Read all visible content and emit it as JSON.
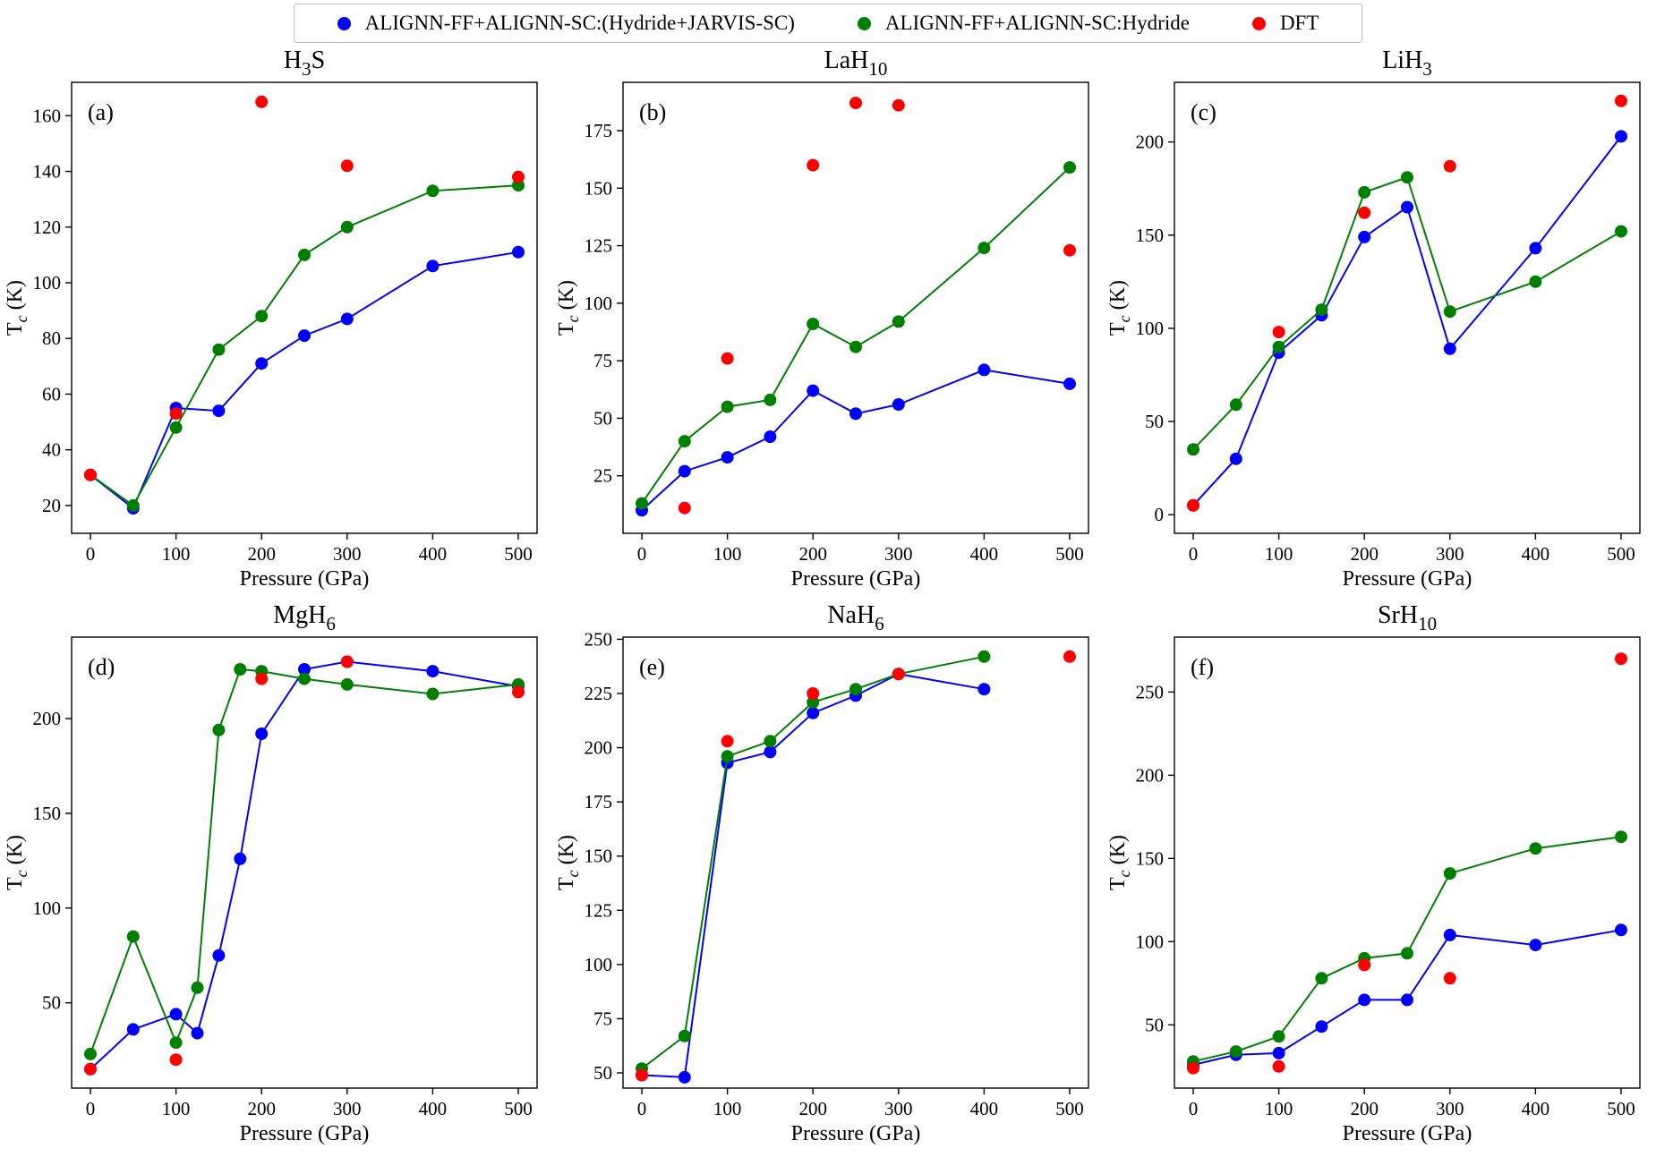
{
  "legend": {
    "items": [
      {
        "label": "ALIGNN-FF+ALIGNN-SC:(Hydride+JARVIS-SC)",
        "color": "#0000ff"
      },
      {
        "label": "ALIGNN-FF+ALIGNN-SC:Hydride",
        "color": "#008000"
      },
      {
        "label": "DFT",
        "color": "#ff0000"
      }
    ]
  },
  "chart_data": [
    {
      "type": "line",
      "panel": "(a)",
      "title": {
        "pre": "H",
        "sub": "3",
        "post": "S"
      },
      "xlabel": "Pressure (GPa)",
      "ylabel": {
        "pre": "T",
        "sub": "c",
        "post": " (K)"
      },
      "xlim": [
        -22,
        522
      ],
      "ylim": [
        10,
        172
      ],
      "xticks": [
        0,
        100,
        200,
        300,
        400,
        500
      ],
      "yticks": [
        20,
        40,
        60,
        80,
        100,
        120,
        140,
        160
      ],
      "series": [
        {
          "name": "ALIGNN-FF+ALIGNN-SC:(Hydride+JARVIS-SC)",
          "color": "#0000ff",
          "line": true,
          "points": [
            [
              0,
              31
            ],
            [
              50,
              19
            ],
            [
              100,
              55
            ],
            [
              150,
              54
            ],
            [
              200,
              71
            ],
            [
              250,
              81
            ],
            [
              300,
              87
            ],
            [
              400,
              106
            ],
            [
              500,
              111
            ]
          ]
        },
        {
          "name": "ALIGNN-FF+ALIGNN-SC:Hydride",
          "color": "#008000",
          "line": true,
          "points": [
            [
              0,
              31
            ],
            [
              50,
              20
            ],
            [
              100,
              48
            ],
            [
              150,
              76
            ],
            [
              200,
              88
            ],
            [
              250,
              110
            ],
            [
              300,
              120
            ],
            [
              400,
              133
            ],
            [
              500,
              135
            ]
          ]
        },
        {
          "name": "DFT",
          "color": "#ff0000",
          "line": false,
          "points": [
            [
              0,
              31
            ],
            [
              100,
              53
            ],
            [
              200,
              165
            ],
            [
              300,
              142
            ],
            [
              500,
              138
            ]
          ]
        }
      ]
    },
    {
      "type": "line",
      "panel": "(b)",
      "title": {
        "pre": "LaH",
        "sub": "10",
        "post": ""
      },
      "xlabel": "Pressure (GPa)",
      "ylabel": {
        "pre": "T",
        "sub": "c",
        "post": " (K)"
      },
      "xlim": [
        -22,
        522
      ],
      "ylim": [
        0,
        196
      ],
      "xticks": [
        0,
        100,
        200,
        300,
        400,
        500
      ],
      "yticks": [
        25,
        50,
        75,
        100,
        125,
        150,
        175
      ],
      "series": [
        {
          "name": "ALIGNN-FF+ALIGNN-SC:(Hydride+JARVIS-SC)",
          "color": "#0000ff",
          "line": true,
          "points": [
            [
              0,
              10
            ],
            [
              50,
              27
            ],
            [
              100,
              33
            ],
            [
              150,
              42
            ],
            [
              200,
              62
            ],
            [
              250,
              52
            ],
            [
              300,
              56
            ],
            [
              400,
              71
            ],
            [
              500,
              65
            ]
          ]
        },
        {
          "name": "ALIGNN-FF+ALIGNN-SC:Hydride",
          "color": "#008000",
          "line": true,
          "points": [
            [
              0,
              13
            ],
            [
              50,
              40
            ],
            [
              100,
              55
            ],
            [
              150,
              58
            ],
            [
              200,
              91
            ],
            [
              250,
              81
            ],
            [
              300,
              92
            ],
            [
              400,
              124
            ],
            [
              500,
              159
            ]
          ]
        },
        {
          "name": "DFT",
          "color": "#ff0000",
          "line": false,
          "points": [
            [
              50,
              11
            ],
            [
              100,
              76
            ],
            [
              200,
              160
            ],
            [
              250,
              187
            ],
            [
              300,
              186
            ],
            [
              500,
              123
            ]
          ]
        }
      ]
    },
    {
      "type": "line",
      "panel": "(c)",
      "title": {
        "pre": "LiH",
        "sub": "3",
        "post": ""
      },
      "xlabel": "Pressure (GPa)",
      "ylabel": {
        "pre": "T",
        "sub": "c",
        "post": " (K)"
      },
      "xlim": [
        -22,
        522
      ],
      "ylim": [
        -10,
        232
      ],
      "xticks": [
        0,
        100,
        200,
        300,
        400,
        500
      ],
      "yticks": [
        0,
        50,
        100,
        150,
        200
      ],
      "series": [
        {
          "name": "ALIGNN-FF+ALIGNN-SC:(Hydride+JARVIS-SC)",
          "color": "#0000ff",
          "line": true,
          "points": [
            [
              0,
              5
            ],
            [
              50,
              30
            ],
            [
              100,
              87
            ],
            [
              150,
              107
            ],
            [
              200,
              149
            ],
            [
              250,
              165
            ],
            [
              300,
              89
            ],
            [
              400,
              143
            ],
            [
              500,
              203
            ]
          ]
        },
        {
          "name": "ALIGNN-FF+ALIGNN-SC:Hydride",
          "color": "#008000",
          "line": true,
          "points": [
            [
              0,
              35
            ],
            [
              50,
              59
            ],
            [
              100,
              90
            ],
            [
              150,
              110
            ],
            [
              200,
              173
            ],
            [
              250,
              181
            ],
            [
              300,
              109
            ],
            [
              400,
              125
            ],
            [
              500,
              152
            ]
          ]
        },
        {
          "name": "DFT",
          "color": "#ff0000",
          "line": false,
          "points": [
            [
              0,
              5
            ],
            [
              100,
              98
            ],
            [
              200,
              162
            ],
            [
              300,
              187
            ],
            [
              500,
              222
            ]
          ]
        }
      ]
    },
    {
      "type": "line",
      "panel": "(d)",
      "title": {
        "pre": "MgH",
        "sub": "6",
        "post": ""
      },
      "xlabel": "Pressure (GPa)",
      "ylabel": {
        "pre": "T",
        "sub": "c",
        "post": " (K)"
      },
      "xlim": [
        -22,
        522
      ],
      "ylim": [
        5,
        243
      ],
      "xticks": [
        0,
        100,
        200,
        300,
        400,
        500
      ],
      "yticks": [
        50,
        100,
        150,
        200
      ],
      "series": [
        {
          "name": "ALIGNN-FF+ALIGNN-SC:(Hydride+JARVIS-SC)",
          "color": "#0000ff",
          "line": true,
          "points": [
            [
              0,
              15
            ],
            [
              50,
              36
            ],
            [
              100,
              44
            ],
            [
              125,
              34
            ],
            [
              150,
              75
            ],
            [
              175,
              126
            ],
            [
              200,
              192
            ],
            [
              250,
              226
            ],
            [
              300,
              230
            ],
            [
              400,
              225
            ],
            [
              500,
              217
            ]
          ]
        },
        {
          "name": "ALIGNN-FF+ALIGNN-SC:Hydride",
          "color": "#008000",
          "line": true,
          "points": [
            [
              0,
              23
            ],
            [
              50,
              85
            ],
            [
              100,
              29
            ],
            [
              125,
              58
            ],
            [
              150,
              194
            ],
            [
              175,
              226
            ],
            [
              200,
              225
            ],
            [
              250,
              221
            ],
            [
              300,
              218
            ],
            [
              400,
              213
            ],
            [
              500,
              218
            ]
          ]
        },
        {
          "name": "DFT",
          "color": "#ff0000",
          "line": false,
          "points": [
            [
              0,
              15
            ],
            [
              100,
              20
            ],
            [
              200,
              221
            ],
            [
              300,
              230
            ],
            [
              500,
              214
            ]
          ]
        }
      ]
    },
    {
      "type": "line",
      "panel": "(e)",
      "title": {
        "pre": "NaH",
        "sub": "6",
        "post": ""
      },
      "xlabel": "Pressure (GPa)",
      "ylabel": {
        "pre": "T",
        "sub": "c",
        "post": " (K)"
      },
      "xlim": [
        -22,
        522
      ],
      "ylim": [
        43,
        251
      ],
      "xticks": [
        0,
        100,
        200,
        300,
        400,
        500
      ],
      "yticks": [
        50,
        75,
        100,
        125,
        150,
        175,
        200,
        225,
        250
      ],
      "series": [
        {
          "name": "ALIGNN-FF+ALIGNN-SC:(Hydride+JARVIS-SC)",
          "color": "#0000ff",
          "line": true,
          "points": [
            [
              0,
              49
            ],
            [
              50,
              48
            ],
            [
              100,
              193
            ],
            [
              150,
              198
            ],
            [
              200,
              216
            ],
            [
              250,
              224
            ],
            [
              300,
              234
            ],
            [
              400,
              227
            ]
          ]
        },
        {
          "name": "ALIGNN-FF+ALIGNN-SC:Hydride",
          "color": "#008000",
          "line": true,
          "points": [
            [
              0,
              52
            ],
            [
              50,
              67
            ],
            [
              100,
              196
            ],
            [
              150,
              203
            ],
            [
              200,
              221
            ],
            [
              250,
              227
            ],
            [
              300,
              234
            ],
            [
              400,
              242
            ]
          ]
        },
        {
          "name": "DFT",
          "color": "#ff0000",
          "line": false,
          "points": [
            [
              0,
              49
            ],
            [
              100,
              203
            ],
            [
              200,
              225
            ],
            [
              300,
              234
            ],
            [
              500,
              242
            ]
          ]
        }
      ]
    },
    {
      "type": "line",
      "panel": "(f)",
      "title": {
        "pre": "SrH",
        "sub": "10",
        "post": ""
      },
      "xlabel": "Pressure (GPa)",
      "ylabel": {
        "pre": "T",
        "sub": "c",
        "post": " (K)"
      },
      "xlim": [
        -22,
        522
      ],
      "ylim": [
        12,
        283
      ],
      "xticks": [
        0,
        100,
        200,
        300,
        400,
        500
      ],
      "yticks": [
        50,
        100,
        150,
        200,
        250
      ],
      "series": [
        {
          "name": "ALIGNN-FF+ALIGNN-SC:(Hydride+JARVIS-SC)",
          "color": "#0000ff",
          "line": true,
          "points": [
            [
              0,
              26
            ],
            [
              50,
              32
            ],
            [
              100,
              33
            ],
            [
              150,
              49
            ],
            [
              200,
              65
            ],
            [
              250,
              65
            ],
            [
              300,
              104
            ],
            [
              400,
              98
            ],
            [
              500,
              107
            ]
          ]
        },
        {
          "name": "ALIGNN-FF+ALIGNN-SC:Hydride",
          "color": "#008000",
          "line": true,
          "points": [
            [
              0,
              28
            ],
            [
              50,
              34
            ],
            [
              100,
              43
            ],
            [
              150,
              78
            ],
            [
              200,
              90
            ],
            [
              250,
              93
            ],
            [
              300,
              141
            ],
            [
              400,
              156
            ],
            [
              500,
              163
            ]
          ]
        },
        {
          "name": "DFT",
          "color": "#ff0000",
          "line": false,
          "points": [
            [
              0,
              24
            ],
            [
              100,
              25
            ],
            [
              200,
              86
            ],
            [
              300,
              78
            ],
            [
              500,
              270
            ]
          ]
        }
      ]
    }
  ]
}
